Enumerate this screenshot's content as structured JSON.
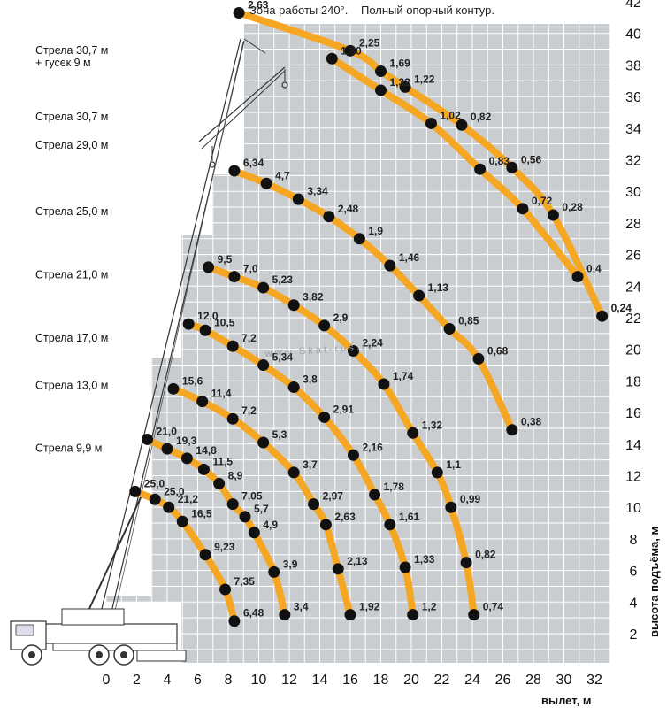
{
  "header": {
    "zone": "Зона работы 240°.",
    "contour": "Полный опорный контур."
  },
  "watermark": "www.Skat-rus.ru",
  "colors": {
    "grid_bg": "#c9cdd0",
    "grid_line": "#ffffff",
    "curve": "#f5a623",
    "dot": "#111111"
  },
  "chart_data": {
    "type": "scatter",
    "xlabel": "вылет, м",
    "ylabel": "высота подъёма, м",
    "xlim": [
      0,
      33
    ],
    "ylim": [
      0,
      42
    ],
    "x_ticks": [
      0,
      2,
      4,
      6,
      8,
      10,
      12,
      14,
      16,
      18,
      20,
      22,
      24,
      26,
      28,
      30,
      32
    ],
    "y_ticks": [
      2,
      4,
      6,
      8,
      10,
      12,
      14,
      16,
      18,
      20,
      22,
      24,
      26,
      28,
      30,
      32,
      34,
      36,
      38,
      40,
      42
    ],
    "grid": true,
    "boom_labels": [
      {
        "text": "Стрела 30,7 м",
        "y": 38.7
      },
      {
        "text": "+ гусек 9 м",
        "y": 37.9
      },
      {
        "text": "Стрела 30,7 м",
        "y": 34.5
      },
      {
        "text": "Стрела 29,0 м",
        "y": 32.7
      },
      {
        "text": "Стрела 25,0 м",
        "y": 28.5
      },
      {
        "text": "Стрела 21,0 м",
        "y": 24.5
      },
      {
        "text": "Стрела 17,0 м",
        "y": 20.5
      },
      {
        "text": "Стрела 13,0 м",
        "y": 17.5
      },
      {
        "text": "Стрела 9,9 м",
        "y": 13.5
      }
    ],
    "series": [
      {
        "points": [
          {
            "x": 8.7,
            "y": 41.3,
            "label": "2,63"
          },
          {
            "x": 16.0,
            "y": 38.9,
            "label": "2,25"
          },
          {
            "x": 18.0,
            "y": 37.6,
            "label": "1,69"
          },
          {
            "x": 19.6,
            "y": 36.6,
            "label": "1,22"
          },
          {
            "x": 23.3,
            "y": 34.2,
            "label": "0,82"
          },
          {
            "x": 26.6,
            "y": 31.5,
            "label": "0,56"
          },
          {
            "x": 29.3,
            "y": 28.5,
            "label": "0,28"
          },
          {
            "x": 32.5,
            "y": 22.1,
            "label": "0,24"
          }
        ]
      },
      {
        "points": [
          {
            "x": 14.8,
            "y": 38.4,
            "label": "1,80"
          },
          {
            "x": 18.0,
            "y": 36.4,
            "label": "1,32"
          },
          {
            "x": 21.3,
            "y": 34.3,
            "label": "1,02"
          },
          {
            "x": 24.5,
            "y": 31.4,
            "label": "0,83"
          },
          {
            "x": 27.3,
            "y": 28.9,
            "label": "0,72"
          },
          {
            "x": 30.9,
            "y": 24.6,
            "label": "0,4"
          }
        ]
      },
      {
        "points": [
          {
            "x": 8.4,
            "y": 31.3,
            "label": "6,34"
          },
          {
            "x": 10.5,
            "y": 30.5,
            "label": "4,7"
          },
          {
            "x": 12.6,
            "y": 29.5,
            "label": "3,34"
          },
          {
            "x": 14.6,
            "y": 28.4,
            "label": "2,48"
          },
          {
            "x": 16.6,
            "y": 27.0,
            "label": "1,9"
          },
          {
            "x": 18.6,
            "y": 25.3,
            "label": "1,46"
          },
          {
            "x": 20.5,
            "y": 23.4,
            "label": "1,13"
          },
          {
            "x": 22.5,
            "y": 21.3,
            "label": "0,85"
          },
          {
            "x": 24.4,
            "y": 19.4,
            "label": "0,68"
          },
          {
            "x": 26.6,
            "y": 14.9,
            "label": "0,38"
          }
        ]
      },
      {
        "points": [
          {
            "x": 6.7,
            "y": 25.2,
            "label": "9,5"
          },
          {
            "x": 8.4,
            "y": 24.6,
            "label": "7,0"
          },
          {
            "x": 10.3,
            "y": 23.9,
            "label": "5,23"
          },
          {
            "x": 12.3,
            "y": 22.8,
            "label": "3,82"
          },
          {
            "x": 14.3,
            "y": 21.5,
            "label": "2,9"
          },
          {
            "x": 16.2,
            "y": 19.9,
            "label": "2,24"
          },
          {
            "x": 18.2,
            "y": 17.8,
            "label": "1,74"
          },
          {
            "x": 20.1,
            "y": 14.7,
            "label": "1,32"
          },
          {
            "x": 21.7,
            "y": 12.2,
            "label": "1,1"
          },
          {
            "x": 22.6,
            "y": 10.0,
            "label": "0,99"
          },
          {
            "x": 23.6,
            "y": 6.5,
            "label": "0,82"
          },
          {
            "x": 24.1,
            "y": 3.2,
            "label": "0,74"
          }
        ]
      },
      {
        "points": [
          {
            "x": 5.4,
            "y": 21.6,
            "label": "12,0"
          },
          {
            "x": 6.5,
            "y": 21.2,
            "label": "10,5"
          },
          {
            "x": 8.3,
            "y": 20.2,
            "label": "7,2"
          },
          {
            "x": 10.3,
            "y": 19.0,
            "label": "5,34"
          },
          {
            "x": 12.3,
            "y": 17.6,
            "label": "3,8"
          },
          {
            "x": 14.3,
            "y": 15.7,
            "label": "2,91"
          },
          {
            "x": 16.2,
            "y": 13.3,
            "label": "2,16"
          },
          {
            "x": 17.6,
            "y": 10.8,
            "label": "1,78"
          },
          {
            "x": 18.6,
            "y": 8.9,
            "label": "1,61"
          },
          {
            "x": 19.6,
            "y": 6.2,
            "label": "1,33"
          },
          {
            "x": 20.1,
            "y": 3.2,
            "label": "1,2"
          }
        ]
      },
      {
        "points": [
          {
            "x": 4.4,
            "y": 17.5,
            "label": "15,6"
          },
          {
            "x": 6.3,
            "y": 16.7,
            "label": "11,4"
          },
          {
            "x": 8.3,
            "y": 15.6,
            "label": "7,2"
          },
          {
            "x": 10.3,
            "y": 14.1,
            "label": "5,3"
          },
          {
            "x": 12.3,
            "y": 12.2,
            "label": "3,7"
          },
          {
            "x": 13.6,
            "y": 10.2,
            "label": "2,97"
          },
          {
            "x": 14.4,
            "y": 8.9,
            "label": "2,63"
          },
          {
            "x": 15.2,
            "y": 6.1,
            "label": "2,13"
          },
          {
            "x": 16.0,
            "y": 3.2,
            "label": "1,92"
          }
        ]
      },
      {
        "points": [
          {
            "x": 2.7,
            "y": 14.3,
            "label": "21,0"
          },
          {
            "x": 4.0,
            "y": 13.7,
            "label": "19,3"
          },
          {
            "x": 5.3,
            "y": 13.1,
            "label": "14,8"
          },
          {
            "x": 6.4,
            "y": 12.4,
            "label": "11,5"
          },
          {
            "x": 7.4,
            "y": 11.5,
            "label": "8,9"
          },
          {
            "x": 8.3,
            "y": 10.2,
            "label": "7,05"
          },
          {
            "x": 9.1,
            "y": 9.4,
            "label": "5,7"
          },
          {
            "x": 9.7,
            "y": 8.4,
            "label": "4,9"
          },
          {
            "x": 11.0,
            "y": 5.9,
            "label": "3,9"
          },
          {
            "x": 11.7,
            "y": 3.2,
            "label": "3,4"
          }
        ]
      },
      {
        "points": [
          {
            "x": 1.9,
            "y": 11.0,
            "label": "25,0"
          },
          {
            "x": 3.2,
            "y": 10.5,
            "label": "25,0"
          },
          {
            "x": 4.1,
            "y": 10.0,
            "label": "21,2"
          },
          {
            "x": 5.0,
            "y": 9.1,
            "label": "16,5"
          },
          {
            "x": 6.5,
            "y": 7.0,
            "label": "9,23"
          },
          {
            "x": 7.8,
            "y": 4.8,
            "label": "7,35"
          },
          {
            "x": 8.4,
            "y": 2.8,
            "label": "6,48"
          }
        ]
      }
    ]
  }
}
